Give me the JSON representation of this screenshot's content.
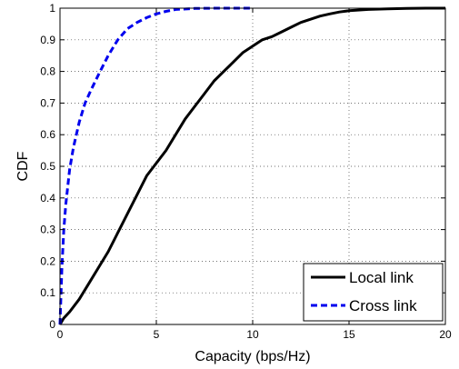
{
  "chart_data": {
    "type": "line",
    "title": "",
    "xlabel": "Capacity (bps/Hz)",
    "ylabel": "CDF",
    "xlim": [
      0,
      20
    ],
    "ylim": [
      0,
      1
    ],
    "xticks": [
      0,
      5,
      10,
      15,
      20
    ],
    "yticks": [
      0,
      0.1,
      0.2,
      0.3,
      0.4,
      0.5,
      0.6,
      0.7,
      0.8,
      0.9,
      1
    ],
    "xtick_labels": [
      "0",
      "5",
      "10",
      "15",
      "20"
    ],
    "ytick_labels": [
      "0",
      "0.1",
      "0.2",
      "0.3",
      "0.4",
      "0.5",
      "0.6",
      "0.7",
      "0.8",
      "0.9",
      "1"
    ],
    "grid": true,
    "legend": {
      "placement": "bottom-right"
    },
    "series": [
      {
        "name": "Local link",
        "color": "#000000",
        "style": "solid",
        "x": [
          0,
          0.2,
          0.5,
          1,
          1.5,
          2,
          2.5,
          3,
          3.5,
          4,
          4.5,
          5,
          5.5,
          6,
          6.5,
          7,
          7.5,
          8,
          8.5,
          9,
          9.5,
          10,
          10.5,
          11,
          11.5,
          12,
          12.5,
          13,
          13.5,
          14,
          14.5,
          15,
          16,
          17,
          18,
          19,
          20
        ],
        "y": [
          0,
          0.02,
          0.04,
          0.08,
          0.13,
          0.18,
          0.23,
          0.29,
          0.35,
          0.41,
          0.47,
          0.51,
          0.55,
          0.6,
          0.65,
          0.69,
          0.73,
          0.77,
          0.8,
          0.83,
          0.86,
          0.88,
          0.9,
          0.91,
          0.925,
          0.94,
          0.955,
          0.965,
          0.975,
          0.982,
          0.988,
          0.992,
          0.996,
          0.998,
          0.999,
          1.0,
          1.0
        ]
      },
      {
        "name": "Cross link",
        "color": "#0000ee",
        "style": "dashed",
        "x": [
          0,
          0.1,
          0.2,
          0.3,
          0.5,
          0.7,
          1,
          1.3,
          1.6,
          2,
          2.5,
          3,
          3.5,
          4,
          4.5,
          5,
          5.5,
          6,
          7,
          8,
          9,
          10
        ],
        "y": [
          0,
          0.18,
          0.3,
          0.38,
          0.49,
          0.56,
          0.64,
          0.7,
          0.74,
          0.79,
          0.85,
          0.9,
          0.935,
          0.955,
          0.97,
          0.982,
          0.99,
          0.996,
          0.999,
          1.0,
          1.0,
          1.0
        ]
      }
    ]
  }
}
